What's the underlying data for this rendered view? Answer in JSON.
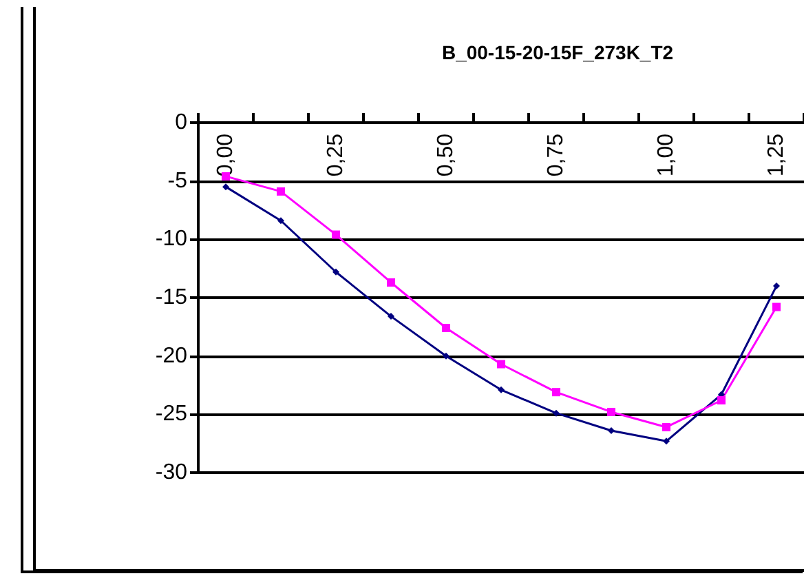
{
  "chart_data": {
    "type": "line",
    "title": "B_00-15-20-15F_273K_T2",
    "categories": [
      "0,00",
      null,
      "0,25",
      null,
      "0,50",
      null,
      "0,75",
      null,
      "1,00",
      null,
      "1,25"
    ],
    "series": [
      {
        "color": "#000080",
        "marker": "diamond",
        "values": [
          -5.5,
          -8.4,
          -12.8,
          -16.6,
          -20.0,
          -22.9,
          -24.9,
          -26.4,
          -27.3,
          -23.3,
          -14.0
        ]
      },
      {
        "color": "#ff00ff",
        "marker": "square",
        "values": [
          -4.6,
          -5.9,
          -9.6,
          -13.7,
          -17.6,
          -20.7,
          -23.1,
          -24.8,
          -26.1,
          -23.8,
          -15.8
        ]
      }
    ],
    "ylim": [
      -30,
      0
    ],
    "yticks": [
      -30,
      -25,
      -20,
      -15,
      -10,
      -5,
      0
    ],
    "grid": "y"
  }
}
